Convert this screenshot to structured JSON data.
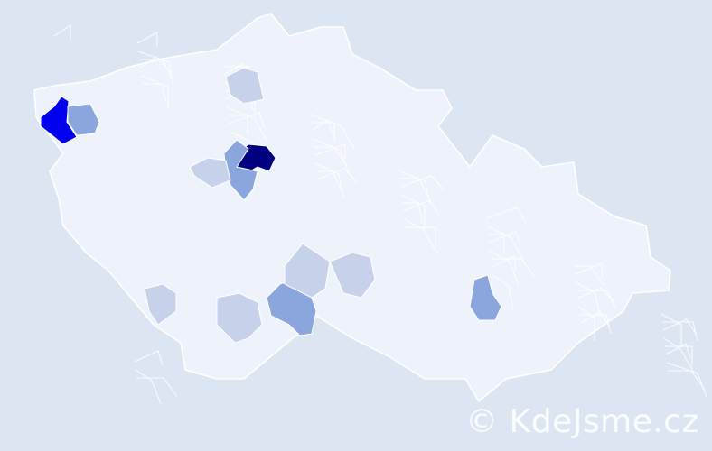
{
  "map": {
    "background": "#dce6f2",
    "base_fill": "#eef2fa",
    "border_color": "#ffffff",
    "legend_levels": {
      "highest": "#000080",
      "high": "#0000ee",
      "medium": "#8aa6dc",
      "low": "#c5d2ea"
    },
    "highlighted_regions": [
      {
        "level": "highest"
      },
      {
        "level": "high"
      },
      {
        "level": "medium"
      },
      {
        "level": "medium"
      },
      {
        "level": "medium"
      },
      {
        "level": "medium"
      },
      {
        "level": "low"
      },
      {
        "level": "low"
      },
      {
        "level": "low"
      },
      {
        "level": "low"
      },
      {
        "level": "low"
      },
      {
        "level": "low"
      }
    ]
  },
  "watermark": {
    "text": "© KdeJsme.cz"
  }
}
